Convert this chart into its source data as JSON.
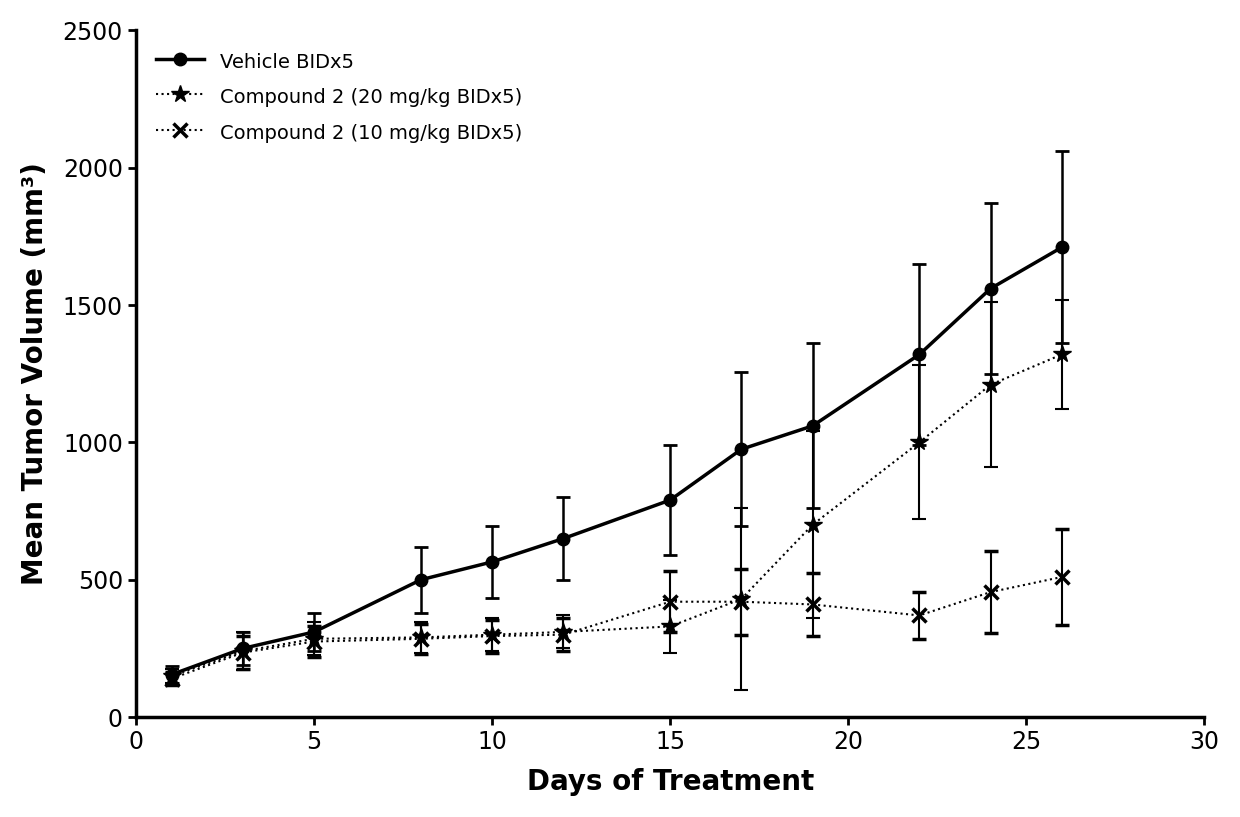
{
  "vehicle": {
    "x": [
      1,
      3,
      5,
      8,
      10,
      12,
      15,
      17,
      19,
      22,
      24,
      26
    ],
    "y": [
      155,
      250,
      310,
      500,
      565,
      650,
      790,
      975,
      1060,
      1320,
      1560,
      1710
    ],
    "yerr": [
      30,
      60,
      70,
      120,
      130,
      150,
      200,
      280,
      300,
      330,
      310,
      350
    ]
  },
  "compound20": {
    "x": [
      1,
      3,
      5,
      8,
      10,
      12,
      15,
      17,
      19,
      22,
      24,
      26
    ],
    "y": [
      150,
      240,
      285,
      290,
      300,
      310,
      330,
      430,
      700,
      1000,
      1210,
      1320
    ],
    "yerr": [
      25,
      70,
      60,
      55,
      60,
      60,
      95,
      330,
      340,
      280,
      300,
      200
    ]
  },
  "compound10": {
    "x": [
      1,
      3,
      5,
      8,
      10,
      12,
      15,
      17,
      19,
      22,
      24,
      26
    ],
    "y": [
      140,
      235,
      275,
      285,
      295,
      300,
      420,
      420,
      410,
      370,
      455,
      510
    ],
    "yerr": [
      25,
      60,
      55,
      55,
      60,
      60,
      110,
      120,
      115,
      85,
      150,
      175
    ]
  },
  "xlabel": "Days of Treatment",
  "ylabel": "Mean Tumor Volume (mm³)",
  "xlim": [
    0,
    30
  ],
  "ylim": [
    0,
    2500
  ],
  "xticks": [
    0,
    5,
    10,
    15,
    20,
    25,
    30
  ],
  "yticks": [
    0,
    500,
    1000,
    1500,
    2000,
    2500
  ],
  "legend_labels": [
    "Vehicle BIDx5",
    "Compound 2 (20 mg/kg BIDx5)",
    "Compound 2 (10 mg/kg BIDx5)"
  ],
  "background_color": "#ffffff"
}
